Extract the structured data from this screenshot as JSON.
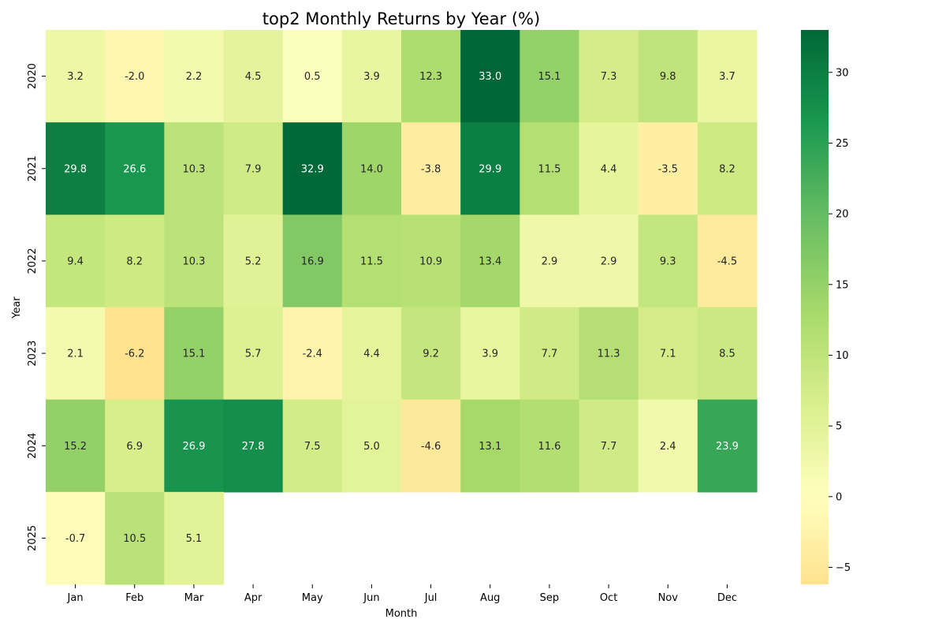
{
  "chart_data": {
    "type": "heatmap",
    "title": "top2 Monthly Returns by Year (%)",
    "xlabel": "Month",
    "ylabel": "Year",
    "x_categories": [
      "Jan",
      "Feb",
      "Mar",
      "Apr",
      "May",
      "Jun",
      "Jul",
      "Aug",
      "Sep",
      "Oct",
      "Nov",
      "Dec"
    ],
    "y_categories": [
      "2020",
      "2021",
      "2022",
      "2023",
      "2024",
      "2025"
    ],
    "values": [
      [
        3.2,
        -2.0,
        2.2,
        4.5,
        0.5,
        3.9,
        12.3,
        33.0,
        15.1,
        7.3,
        9.8,
        3.7
      ],
      [
        29.8,
        26.6,
        10.3,
        7.9,
        32.9,
        14.0,
        -3.8,
        29.9,
        11.5,
        4.4,
        -3.5,
        8.2
      ],
      [
        9.4,
        8.2,
        10.3,
        5.2,
        16.9,
        11.5,
        10.9,
        13.4,
        2.9,
        2.9,
        9.3,
        -4.5
      ],
      [
        2.1,
        -6.2,
        15.1,
        5.7,
        -2.4,
        4.4,
        9.2,
        3.9,
        7.7,
        11.3,
        7.1,
        8.5
      ],
      [
        15.2,
        6.9,
        26.9,
        27.8,
        7.5,
        5.0,
        -4.6,
        13.1,
        11.6,
        7.7,
        2.4,
        23.9
      ],
      [
        -0.7,
        10.5,
        5.1,
        null,
        null,
        null,
        null,
        null,
        null,
        null,
        null,
        null
      ]
    ],
    "colormap": "RdYlGn (centered at 0)",
    "vmin": -6.2,
    "vmax": 33.0,
    "colorbar_ticks": [
      "−5",
      "0",
      "5",
      "10",
      "15",
      "20",
      "25",
      "30"
    ],
    "annotation_format": "%.1f",
    "grid": false,
    "legend": "colorbar-right"
  }
}
